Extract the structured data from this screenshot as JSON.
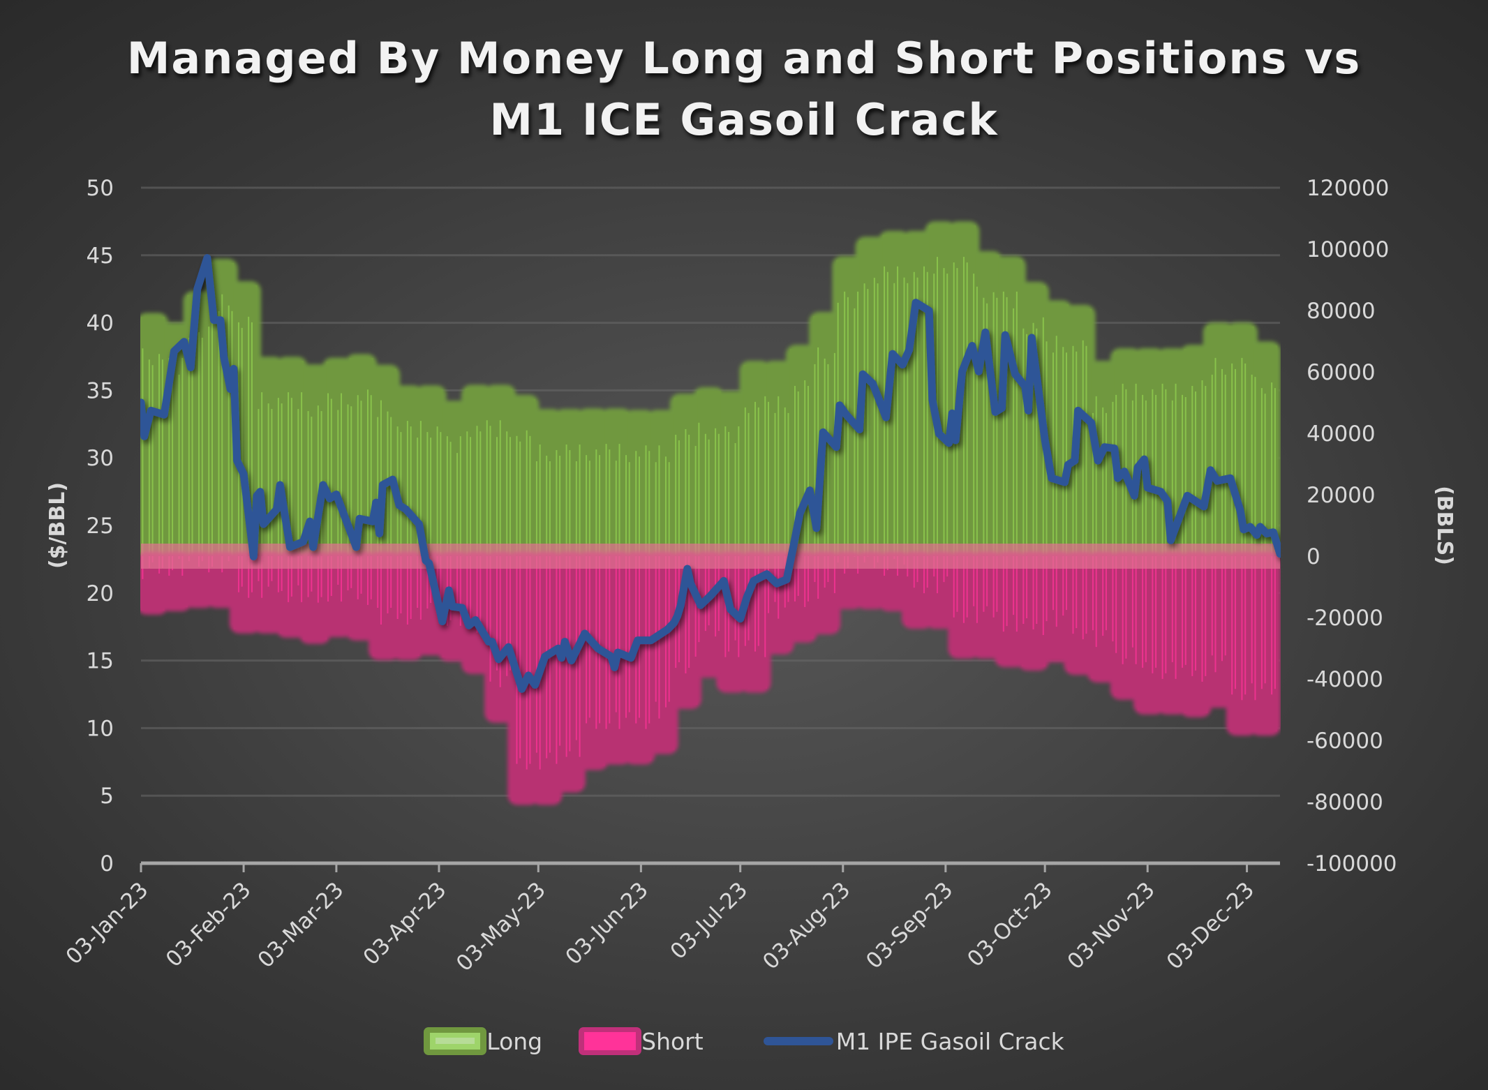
{
  "chart_data": {
    "type": "bar+line",
    "title": [
      "Managed By Money Long and Short Positions vs",
      "M1 ICE Gasoil Crack"
    ],
    "y_left": {
      "label": "($/BBL)",
      "range": [
        0,
        50
      ],
      "ticks": [
        "0",
        "5",
        "10",
        "15",
        "20",
        "25",
        "30",
        "35",
        "40",
        "45",
        "50"
      ]
    },
    "y_right": {
      "label": "(BBLS)",
      "range": [
        -100000,
        120000
      ],
      "ticks": [
        "-100000",
        "-80000",
        "-60000",
        "-40000",
        "-20000",
        "0",
        "20000",
        "40000",
        "60000",
        "80000",
        "100000",
        "120000"
      ]
    },
    "x_axis": {
      "start": "03-Jan-23",
      "unit": "days since 03-Jan-23",
      "range": [
        0,
        344
      ],
      "tick_labels": [
        "03-Jan-23",
        "03-Feb-23",
        "03-Mar-23",
        "03-Apr-23",
        "03-May-23",
        "03-Jun-23",
        "03-Jul-23",
        "03-Aug-23",
        "03-Sep-23",
        "03-Oct-23",
        "03-Nov-23",
        "03-Dec-23"
      ],
      "tick_days": [
        0,
        31,
        59,
        90,
        120,
        151,
        181,
        212,
        243,
        273,
        304,
        334
      ]
    },
    "grid": true,
    "legend_position": "bottom",
    "bar_interval_days": 7,
    "series": [
      {
        "name": "Long",
        "type": "bar",
        "axis": "right",
        "color": "#70983f",
        "stripe_color": "#92d050",
        "values": [
          77900,
          74800,
          85000,
          95500,
          88200,
          63600,
          63600,
          61100,
          63300,
          64500,
          61000,
          54300,
          54300,
          49300,
          54500,
          54500,
          51200,
          46600,
          46600,
          46800,
          46800,
          46300,
          46300,
          51600,
          53700,
          52500,
          62300,
          62300,
          67500,
          78200,
          96400,
          102700,
          104600,
          104600,
          107700,
          107700,
          98000,
          96400,
          88000,
          82000,
          80500,
          62300,
          66400,
          66400,
          66400,
          67500,
          74800,
          74800,
          68600
        ]
      },
      {
        "name": "Short",
        "type": "bar",
        "axis": "right",
        "color": "#b83272",
        "stripe_color": "#ff3399",
        "values": [
          -17700,
          -16600,
          -15500,
          -15500,
          -23800,
          -23800,
          -25200,
          -27200,
          -25000,
          -26100,
          -32500,
          -32500,
          -30900,
          -32900,
          -37000,
          -52900,
          -79700,
          -79700,
          -75600,
          -68300,
          -66500,
          -66500,
          -63100,
          -48400,
          -38200,
          -43100,
          -43100,
          -30600,
          -26800,
          -24100,
          -15900,
          -15900,
          -16600,
          -22300,
          -22300,
          -32000,
          -32000,
          -34800,
          -35900,
          -33200,
          -37300,
          -39800,
          -45400,
          -50200,
          -50200,
          -51100,
          -48000,
          -57100,
          -57100
        ]
      },
      {
        "name": "M1 IPE Gasoil Crack",
        "type": "line",
        "axis": "left",
        "color": "#2f5597",
        "points": [
          [
            0,
            34.1
          ],
          [
            1,
            31.6
          ],
          [
            3,
            33.5
          ],
          [
            7,
            33.2
          ],
          [
            10,
            37.9
          ],
          [
            13,
            38.6
          ],
          [
            15,
            36.7
          ],
          [
            17,
            42.5
          ],
          [
            20,
            44.8
          ],
          [
            22,
            40.2
          ],
          [
            24,
            40.2
          ],
          [
            25,
            37.5
          ],
          [
            27,
            35.1
          ],
          [
            28,
            36.6
          ],
          [
            29,
            29.8
          ],
          [
            31,
            28.8
          ],
          [
            34,
            22.7
          ],
          [
            35,
            27.2
          ],
          [
            36,
            27.5
          ],
          [
            37,
            25.1
          ],
          [
            41,
            26.2
          ],
          [
            42,
            28.0
          ],
          [
            45,
            23.4
          ],
          [
            49,
            23.8
          ],
          [
            51,
            25.3
          ],
          [
            52,
            23.4
          ],
          [
            55,
            28.0
          ],
          [
            57,
            27.0
          ],
          [
            59,
            27.3
          ],
          [
            65,
            23.4
          ],
          [
            66,
            25.5
          ],
          [
            70,
            25.3
          ],
          [
            71,
            26.7
          ],
          [
            72,
            24.4
          ],
          [
            73,
            28.0
          ],
          [
            76,
            28.4
          ],
          [
            78,
            26.5
          ],
          [
            80,
            26.2
          ],
          [
            84,
            25.1
          ],
          [
            86,
            22.4
          ],
          [
            87,
            22.2
          ],
          [
            91,
            17.9
          ],
          [
            93,
            20.2
          ],
          [
            94,
            19.0
          ],
          [
            97,
            18.9
          ],
          [
            99,
            17.6
          ],
          [
            101,
            18.0
          ],
          [
            105,
            16.4
          ],
          [
            106,
            16.4
          ],
          [
            108,
            15.1
          ],
          [
            111,
            16.0
          ],
          [
            115,
            12.9
          ],
          [
            117,
            13.9
          ],
          [
            119,
            13.2
          ],
          [
            122,
            15.3
          ],
          [
            126,
            15.9
          ],
          [
            127,
            15.2
          ],
          [
            128,
            16.4
          ],
          [
            130,
            15.0
          ],
          [
            134,
            17.0
          ],
          [
            138,
            15.9
          ],
          [
            142,
            15.3
          ],
          [
            143,
            14.5
          ],
          [
            144,
            15.6
          ],
          [
            148,
            15.2
          ],
          [
            150,
            16.5
          ],
          [
            154,
            16.5
          ],
          [
            159,
            17.3
          ],
          [
            161,
            17.8
          ],
          [
            162,
            18.3
          ],
          [
            163,
            19.1
          ],
          [
            165,
            21.8
          ],
          [
            166,
            20.7
          ],
          [
            169,
            19.1
          ],
          [
            172,
            19.8
          ],
          [
            176,
            20.9
          ],
          [
            178,
            18.8
          ],
          [
            181,
            18.1
          ],
          [
            183,
            19.7
          ],
          [
            185,
            20.9
          ],
          [
            189,
            21.4
          ],
          [
            192,
            20.7
          ],
          [
            195,
            21.0
          ],
          [
            197,
            23.4
          ],
          [
            199,
            25.9
          ],
          [
            202,
            27.6
          ],
          [
            204,
            24.8
          ],
          [
            206,
            31.9
          ],
          [
            210,
            30.8
          ],
          [
            211,
            33.9
          ],
          [
            213,
            33.2
          ],
          [
            217,
            32.1
          ],
          [
            218,
            36.2
          ],
          [
            221,
            35.5
          ],
          [
            225,
            33.0
          ],
          [
            227,
            37.7
          ],
          [
            230,
            36.9
          ],
          [
            232,
            38.0
          ],
          [
            234,
            41.5
          ],
          [
            238,
            40.9
          ],
          [
            239,
            34.3
          ],
          [
            241,
            31.8
          ],
          [
            244,
            31.1
          ],
          [
            245,
            33.3
          ],
          [
            246,
            31.3
          ],
          [
            248,
            36.4
          ],
          [
            251,
            38.3
          ],
          [
            253,
            36.4
          ],
          [
            255,
            39.3
          ],
          [
            258,
            33.4
          ],
          [
            260,
            33.7
          ],
          [
            261,
            39.1
          ],
          [
            264,
            36.2
          ],
          [
            267,
            35.3
          ],
          [
            268,
            33.5
          ],
          [
            269,
            38.9
          ],
          [
            273,
            31.3
          ],
          [
            275,
            28.5
          ],
          [
            279,
            28.2
          ],
          [
            280,
            29.5
          ],
          [
            282,
            29.8
          ],
          [
            283,
            33.5
          ],
          [
            287,
            32.6
          ],
          [
            289,
            29.8
          ],
          [
            291,
            30.8
          ],
          [
            294,
            30.7
          ],
          [
            295,
            28.5
          ],
          [
            297,
            29.0
          ],
          [
            300,
            27.2
          ],
          [
            301,
            29.3
          ],
          [
            303,
            29.9
          ],
          [
            304,
            27.8
          ],
          [
            308,
            27.5
          ],
          [
            310,
            26.8
          ],
          [
            311,
            23.9
          ],
          [
            316,
            27.2
          ],
          [
            321,
            26.4
          ],
          [
            323,
            29.1
          ],
          [
            325,
            28.3
          ],
          [
            329,
            28.5
          ],
          [
            332,
            26.1
          ],
          [
            333,
            24.7
          ],
          [
            335,
            24.9
          ],
          [
            337,
            24.3
          ],
          [
            338,
            24.9
          ],
          [
            340,
            24.4
          ],
          [
            342,
            24.5
          ],
          [
            344,
            22.9
          ]
        ]
      }
    ]
  },
  "legend": {
    "items": [
      {
        "label": "Long",
        "color": "#70983f"
      },
      {
        "label": "Short",
        "color": "#ff3399"
      },
      {
        "label": "M1 IPE Gasoil Crack",
        "color": "#2f5597"
      }
    ]
  }
}
